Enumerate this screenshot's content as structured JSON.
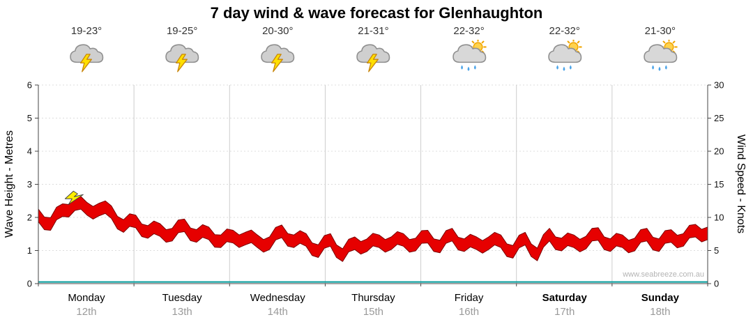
{
  "title": "7 day wind & wave forecast for Glenhaughton",
  "watermark": "www.seabreeze.com.au",
  "days": [
    {
      "name": "Monday",
      "date": "12th",
      "temp": "19-23°",
      "icon": "storm",
      "bold": false
    },
    {
      "name": "Tuesday",
      "date": "13th",
      "temp": "19-25°",
      "icon": "storm",
      "bold": false
    },
    {
      "name": "Wednesday",
      "date": "14th",
      "temp": "20-30°",
      "icon": "storm",
      "bold": false
    },
    {
      "name": "Thursday",
      "date": "15th",
      "temp": "21-31°",
      "icon": "storm",
      "bold": false
    },
    {
      "name": "Friday",
      "date": "16th",
      "temp": "22-32°",
      "icon": "sun-showers",
      "bold": false
    },
    {
      "name": "Saturday",
      "date": "17th",
      "temp": "22-32°",
      "icon": "sun-showers",
      "bold": true
    },
    {
      "name": "Sunday",
      "date": "18th",
      "temp": "21-30°",
      "icon": "sun-showers",
      "bold": true
    }
  ],
  "chart_data": {
    "type": "area",
    "title": "7 day wind & wave forecast for Glenhaughton",
    "x_days": [
      "Monday 12th",
      "Tuesday 13th",
      "Wednesday 14th",
      "Thursday 15th",
      "Friday 16th",
      "Saturday 17th",
      "Sunday 18th"
    ],
    "samples_per_day": 8,
    "y_left": {
      "label": "Wave Height - Metres",
      "min": 0,
      "max": 6,
      "ticks": [
        0,
        1,
        2,
        3,
        4,
        5,
        6
      ]
    },
    "y_right": {
      "label": "Wind Speed - Knots",
      "min": 0,
      "max": 30,
      "ticks": [
        0,
        5,
        10,
        15,
        20,
        25,
        30
      ]
    },
    "series": [
      {
        "name": "Wind Speed",
        "unit": "knots",
        "color": "#e60000",
        "values": [
          9.8,
          9.5,
          10.6,
          12.5,
          10.8,
          11.7,
          10.3,
          9.2,
          8.9,
          8.3,
          7.6,
          7.9,
          8.3,
          7.7,
          7.1,
          6.9,
          6.6,
          7.3,
          5.9,
          6.6,
          7.4,
          6.9,
          6.1,
          5.4,
          6.1,
          4.8,
          5.6,
          6.3,
          5.9,
          6.6,
          6.1,
          6.4,
          6.6,
          6.1,
          6.9,
          6.3,
          5.6,
          6.6,
          5.9,
          5.3,
          6.3,
          4.9,
          6.9,
          6.4,
          5.9,
          6.7,
          7.0,
          6.3,
          5.9,
          6.4,
          6.9,
          6.3,
          6.7,
          7.1,
          7.5,
          8.1
        ]
      },
      {
        "name": "Wave Height",
        "unit": "metres",
        "color": "#009a9a",
        "constant": 0.05
      }
    ],
    "marker": {
      "type": "lightning",
      "point_index": 3,
      "color": "#ffee00"
    },
    "grid": {
      "vertical_day_lines": true,
      "horizontal_dotted": true,
      "legend": "none"
    },
    "colors": {
      "band_fill": "#e60000",
      "band_edge": "#7a0000",
      "axis": "#444444",
      "grid_vertical": "#cccccc",
      "grid_horizontal": "#dcdcdc",
      "wave_line": "#009a9a"
    }
  }
}
